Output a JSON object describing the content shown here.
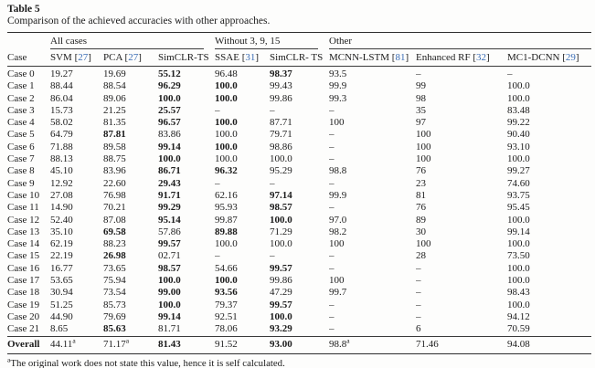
{
  "title": "Table 5",
  "caption": "Comparison of the achieved accuracies with other approaches.",
  "colors": {
    "citation_blue": "#3b6db5",
    "text": "#1c1c1c",
    "rule": "#3a3a3a"
  },
  "table": {
    "groups": [
      {
        "label": "All cases",
        "span": 3
      },
      {
        "label": "Without 3, 9, 15",
        "span": 2
      },
      {
        "label": "Other",
        "span": 3
      }
    ],
    "case_header": "Case",
    "columns": [
      {
        "label": "SVM",
        "ref": "27"
      },
      {
        "label": "PCA",
        "ref": "27"
      },
      {
        "label": "SimCLR-TS",
        "ref": ""
      },
      {
        "label": "SSAE",
        "ref": "31"
      },
      {
        "label": "SimCLR- TS",
        "ref": ""
      },
      {
        "label": "MCNN-LSTM",
        "ref": "81"
      },
      {
        "label": "Enhanced RF",
        "ref": "32"
      },
      {
        "label": "MC1-DCNN",
        "ref": "29"
      }
    ],
    "rows": [
      {
        "case": "Case 0",
        "values": [
          "19.27",
          "19.69",
          "55.12",
          "96.48",
          "98.37",
          "93.5",
          "–",
          "–"
        ],
        "bold": [
          2,
          4
        ]
      },
      {
        "case": "Case 1",
        "values": [
          "88.44",
          "88.54",
          "96.29",
          "100.0",
          "99.43",
          "99.9",
          "99",
          "100.0"
        ],
        "bold": [
          2,
          3
        ]
      },
      {
        "case": "Case 2",
        "values": [
          "86.04",
          "89.06",
          "100.0",
          "100.0",
          "99.86",
          "99.3",
          "98",
          "100.0"
        ],
        "bold": [
          2,
          3
        ]
      },
      {
        "case": "Case 3",
        "values": [
          "15.73",
          "21.25",
          "25.57",
          "–",
          "–",
          "–",
          "35",
          "83.48"
        ],
        "bold": [
          2
        ]
      },
      {
        "case": "Case 4",
        "values": [
          "58.02",
          "81.35",
          "96.57",
          "100.0",
          "87.71",
          "100",
          "97",
          "99.22"
        ],
        "bold": [
          2,
          3
        ]
      },
      {
        "case": "Case 5",
        "values": [
          "64.79",
          "87.81",
          "83.86",
          "100.0",
          "79.71",
          "–",
          "100",
          "90.40"
        ],
        "bold": [
          1
        ]
      },
      {
        "case": "Case 6",
        "values": [
          "71.88",
          "89.58",
          "99.14",
          "100.0",
          "98.86",
          "–",
          "100",
          "93.10"
        ],
        "bold": [
          2,
          3
        ]
      },
      {
        "case": "Case 7",
        "values": [
          "88.13",
          "88.75",
          "100.0",
          "100.0",
          "100.0",
          "–",
          "100",
          "100.0"
        ],
        "bold": [
          2
        ]
      },
      {
        "case": "Case 8",
        "values": [
          "45.10",
          "83.96",
          "86.71",
          "96.32",
          "95.29",
          "98.8",
          "76",
          "99.27"
        ],
        "bold": [
          2,
          3
        ]
      },
      {
        "case": "Case 9",
        "values": [
          "12.92",
          "22.60",
          "29.43",
          "–",
          "–",
          "–",
          "23",
          "74.60"
        ],
        "bold": [
          2
        ]
      },
      {
        "case": "Case 10",
        "values": [
          "27.08",
          "76.98",
          "91.71",
          "62.16",
          "97.14",
          "99.9",
          "81",
          "93.75"
        ],
        "bold": [
          2,
          4
        ]
      },
      {
        "case": "Case 11",
        "values": [
          "14.90",
          "70.21",
          "99.29",
          "95.93",
          "98.57",
          "–",
          "76",
          "95.45"
        ],
        "bold": [
          2,
          4
        ]
      },
      {
        "case": "Case 12",
        "values": [
          "52.40",
          "87.08",
          "95.14",
          "99.87",
          "100.0",
          "97.0",
          "89",
          "100.0"
        ],
        "bold": [
          2,
          4
        ]
      },
      {
        "case": "Case 13",
        "values": [
          "35.10",
          "69.58",
          "57.86",
          "89.88",
          "71.29",
          "98.2",
          "30",
          "99.14"
        ],
        "bold": [
          1,
          3
        ]
      },
      {
        "case": "Case 14",
        "values": [
          "62.19",
          "88.23",
          "99.57",
          "100.0",
          "100.0",
          "100",
          "100",
          "100.0"
        ],
        "bold": [
          2
        ]
      },
      {
        "case": "Case 15",
        "values": [
          "22.19",
          "26.98",
          "02.71",
          "–",
          "–",
          "–",
          "28",
          "73.50"
        ],
        "bold": [
          1
        ]
      },
      {
        "case": "Case 16",
        "values": [
          "16.77",
          "73.65",
          "98.57",
          "54.66",
          "99.57",
          "–",
          "–",
          "100.0"
        ],
        "bold": [
          2,
          4
        ]
      },
      {
        "case": "Case 17",
        "values": [
          "53.65",
          "75.94",
          "100.0",
          "100.0",
          "99.86",
          "100",
          "–",
          "100.0"
        ],
        "bold": [
          2,
          3
        ]
      },
      {
        "case": "Case 18",
        "values": [
          "30.94",
          "73.54",
          "99.00",
          "93.56",
          "47.29",
          "99.7",
          "–",
          "98.43"
        ],
        "bold": [
          2,
          3
        ]
      },
      {
        "case": "Case 19",
        "values": [
          "51.25",
          "85.73",
          "100.0",
          "79.37",
          "99.57",
          "–",
          "–",
          "100.0"
        ],
        "bold": [
          2,
          4
        ]
      },
      {
        "case": "Case 20",
        "values": [
          "44.90",
          "79.69",
          "99.14",
          "92.51",
          "100.0",
          "–",
          "–",
          "94.12"
        ],
        "bold": [
          2,
          4
        ]
      },
      {
        "case": "Case 21",
        "values": [
          "8.65",
          "85.63",
          "81.71",
          "78.06",
          "93.29",
          "–",
          "6",
          "70.59"
        ],
        "bold": [
          1,
          4
        ]
      }
    ],
    "overall": {
      "case": "Overall",
      "values": [
        "44.11^a",
        "71.17^a",
        "81.43",
        "91.52",
        "93.00",
        "98.8^a",
        "71.46",
        "94.08"
      ],
      "bold": [
        2,
        4
      ]
    }
  },
  "footnote": {
    "marker": "a",
    "text": "The original work does not state this value, hence it is self calculated."
  }
}
